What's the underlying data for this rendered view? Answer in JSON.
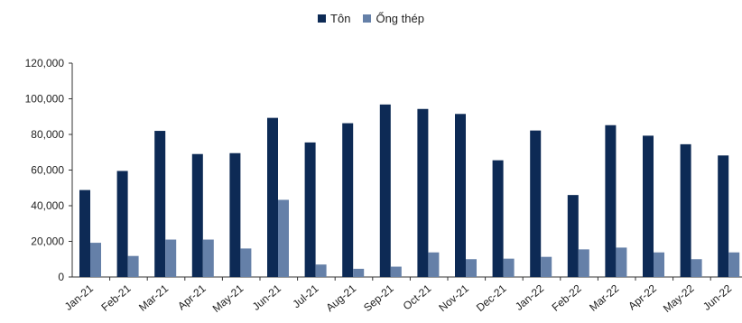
{
  "colors": {
    "ton": "#0d2a55",
    "ong_thep": "#6580a8",
    "axis": "#333333"
  },
  "chart_data": {
    "type": "bar",
    "categories": [
      "Jan-21",
      "Feb-21",
      "Mar-21",
      "Apr-21",
      "May-21",
      "Jun-21",
      "Jul-21",
      "Aug-21",
      "Sep-21",
      "Oct-21",
      "Nov-21",
      "Dec-21",
      "Jan-22",
      "Feb-22",
      "Mar-22",
      "Apr-22",
      "May-22",
      "Jun-22"
    ],
    "series": [
      {
        "name": "Tôn",
        "values": [
          48800,
          59500,
          82000,
          69000,
          69500,
          89300,
          75500,
          86300,
          96800,
          94300,
          91500,
          65500,
          82200,
          46000,
          85200,
          79300,
          74500,
          68200
        ]
      },
      {
        "name": "Ống thép",
        "values": [
          19200,
          11800,
          21000,
          21000,
          16000,
          43300,
          7000,
          4600,
          5800,
          13800,
          10000,
          10300,
          11300,
          15500,
          16500,
          13800,
          10000,
          13800
        ]
      }
    ],
    "yticks": [
      "0",
      "20,000",
      "40,000",
      "60,000",
      "80,000",
      "100,000",
      "120,000"
    ],
    "ylim": [
      0,
      120000
    ],
    "grid": false,
    "legend_position": "top-center"
  }
}
